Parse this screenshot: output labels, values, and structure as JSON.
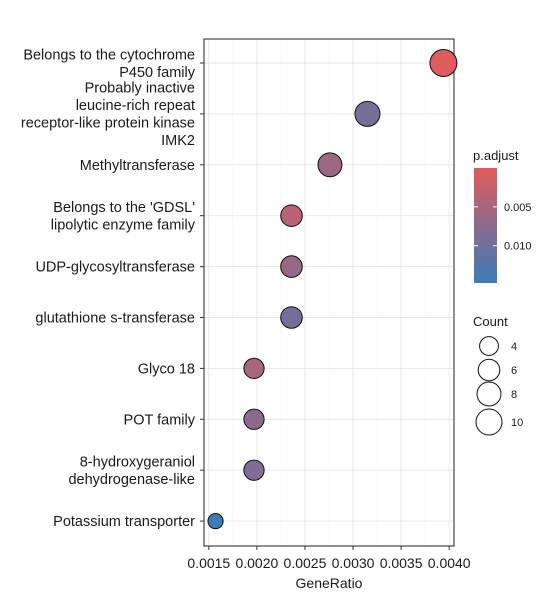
{
  "chart_data": {
    "type": "scatter",
    "xlabel": "GeneRatio",
    "x_ticks": [
      0.0015,
      0.002,
      0.0025,
      0.003,
      0.0035,
      0.004
    ],
    "x_tick_labels": [
      "0.0015",
      "0.0020",
      "0.0025",
      "0.0030",
      "0.0035",
      "0.0040"
    ],
    "xlim": [
      0.00145,
      0.00405
    ],
    "grid": true,
    "legend_position": "right",
    "points": [
      {
        "label_lines": [
          "Belongs to the cytochrome",
          "P450 family"
        ],
        "x": 0.00394,
        "count": 11,
        "p_adjust": 0.0003
      },
      {
        "label_lines": [
          "Probably inactive",
          "leucine-rich repeat",
          "receptor-like protein kinase",
          "IMK2"
        ],
        "x": 0.00315,
        "count": 9,
        "p_adjust": 0.0095
      },
      {
        "label_lines": [
          "Methyltransferase"
        ],
        "x": 0.00276,
        "count": 8,
        "p_adjust": 0.006
      },
      {
        "label_lines": [
          "Belongs to the 'GDSL'",
          "lipolytic enzyme family"
        ],
        "x": 0.00236,
        "count": 6,
        "p_adjust": 0.0035
      },
      {
        "label_lines": [
          "UDP-glycosyltransferase"
        ],
        "x": 0.00236,
        "count": 6,
        "p_adjust": 0.0065
      },
      {
        "label_lines": [
          "glutathione s-transferase"
        ],
        "x": 0.00236,
        "count": 6,
        "p_adjust": 0.0095
      },
      {
        "label_lines": [
          "Glyco 18"
        ],
        "x": 0.00197,
        "count": 5,
        "p_adjust": 0.005
      },
      {
        "label_lines": [
          "POT family"
        ],
        "x": 0.00197,
        "count": 5,
        "p_adjust": 0.0075
      },
      {
        "label_lines": [
          "8-hydroxygeraniol",
          "dehydrogenase-like"
        ],
        "x": 0.00197,
        "count": 5,
        "p_adjust": 0.0085
      },
      {
        "label_lines": [
          "Potassium transporter"
        ],
        "x": 0.00157,
        "count": 2,
        "p_adjust": 0.0145
      }
    ],
    "color_legend": {
      "title": "p.adjust",
      "ticks": [
        0.005,
        0.01
      ],
      "tick_labels": [
        "0.005",
        "0.010"
      ],
      "range": [
        0.0,
        0.0148
      ],
      "low_value_color": "#E35A5C",
      "high_value_color": "#3A7DB8",
      "mid_color": "#8C6A8C"
    },
    "size_legend": {
      "title": "Count",
      "values": [
        4,
        6,
        8,
        10
      ],
      "labels": [
        "4",
        "6",
        "8",
        "10"
      ]
    }
  }
}
